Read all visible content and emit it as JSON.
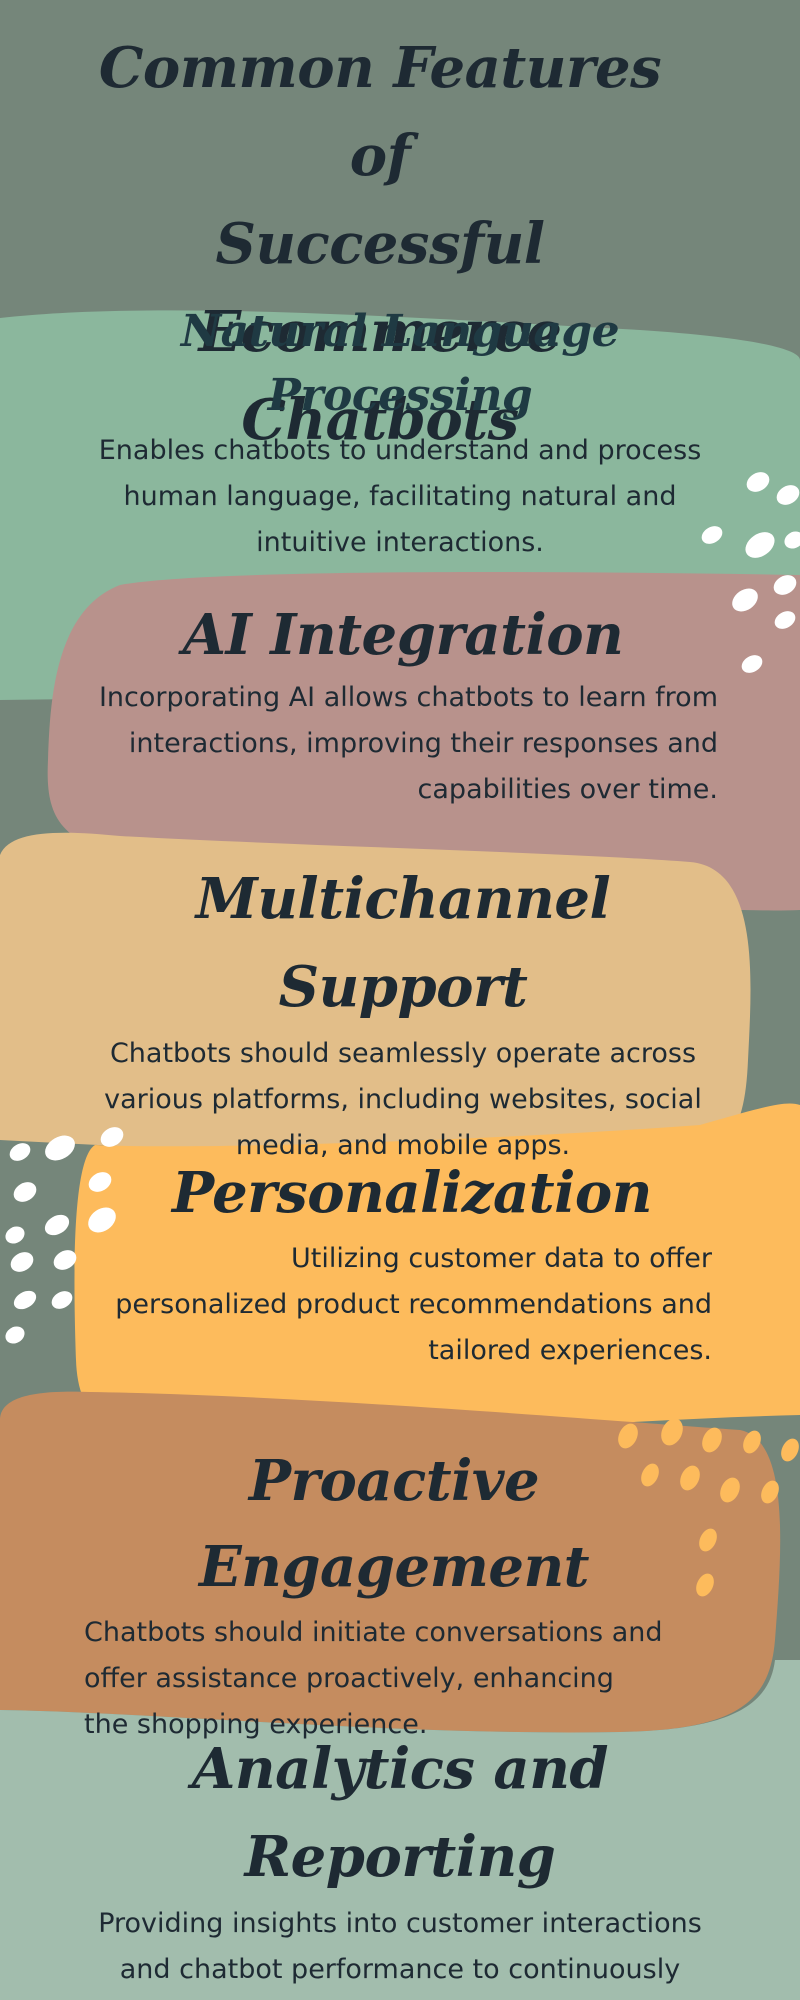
{
  "title": {
    "line1": "Common Features of",
    "line2": "Successful",
    "line3": "Ecommerce Chatbots"
  },
  "colors": {
    "background": "#75867a",
    "sage_green": "#8bb79d",
    "dusty_rose": "#b8928c",
    "sand": "#e2be89",
    "orange": "#fdbb5c",
    "terracotta": "#c58c5f",
    "light_sage": "#a2bdad",
    "text": "#1e2a33"
  },
  "sections": [
    {
      "heading_line1": "Natural Language",
      "heading_line2": "Processing",
      "body": "Enables chatbots to understand and process human language, facilitating natural and intuitive interactions."
    },
    {
      "heading": "AI Integration",
      "body": "Incorporating AI allows chatbots to learn from interactions, improving their responses and capabilities over time."
    },
    {
      "heading": "Multichannel Support",
      "body": "Chatbots should seamlessly operate across various platforms, including websites, social media, and mobile apps."
    },
    {
      "heading": "Personalization",
      "body": "Utilizing customer data to offer personalized product recommendations and tailored experiences."
    },
    {
      "heading": "Proactive Engagement",
      "body": "Chatbots should initiate conversations and offer assistance proactively, enhancing the shopping experience."
    },
    {
      "heading": "Analytics and Reporting",
      "body": "Providing insights into customer interactions and chatbot performance to continuously improve service quality."
    }
  ]
}
